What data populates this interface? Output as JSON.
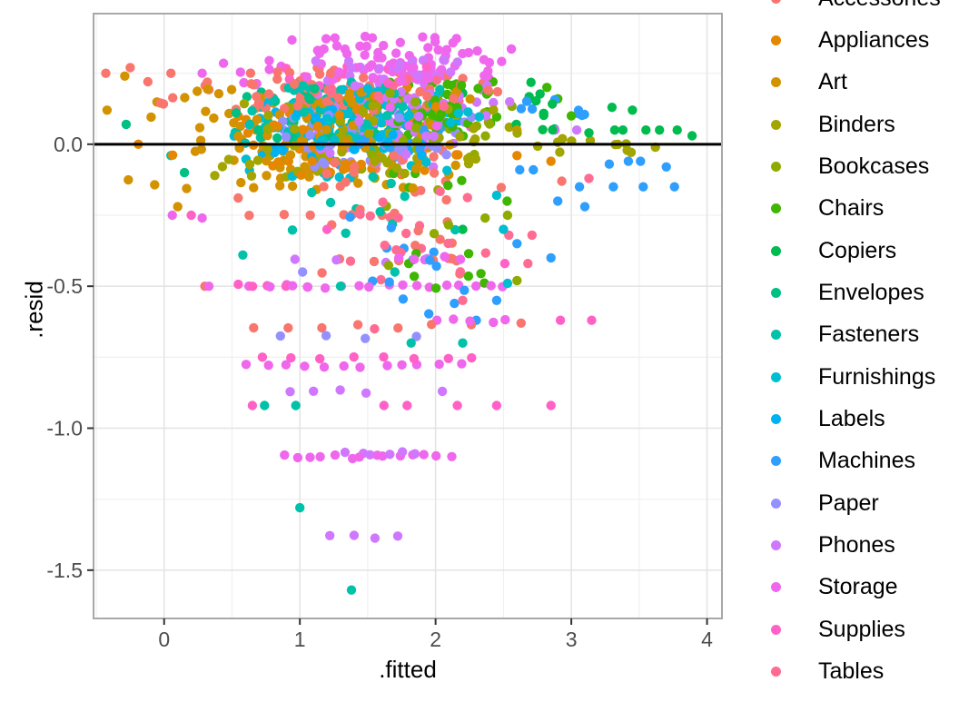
{
  "chart_data": {
    "type": "scatter",
    "title": "",
    "xlabel": ".fitted",
    "ylabel": ".resid",
    "xlim": [
      -0.52,
      4.11
    ],
    "ylim": [
      -1.67,
      0.46
    ],
    "grid": true,
    "legend_position": "right",
    "hline": {
      "y": 0,
      "color": "#000000"
    },
    "x_ticks": {
      "values": [
        0,
        1,
        2,
        3,
        4
      ],
      "labels": [
        "0",
        "1",
        "2",
        "3",
        "4"
      ]
    },
    "y_ticks": {
      "values": [
        0,
        -0.5,
        -1,
        -1.5
      ],
      "labels": [
        "0.0",
        "-0.5",
        "-1.0",
        "-1.5"
      ]
    },
    "x_minor": [
      -0.5,
      0.5,
      1.5,
      2.5,
      3.5
    ],
    "y_minor": [
      0.25,
      -0.25,
      -0.75,
      -1.25
    ],
    "series": [
      {
        "name": "Accessories",
        "color": "#F8766D",
        "clusters": [
          {
            "x": [
              -0.2,
              2.62
            ],
            "y": [
              0.12,
              0.27
            ],
            "n": 75
          },
          {
            "x": [
              0.35,
              2.6
            ],
            "y": [
              -0.2,
              -0.02
            ],
            "n": 22
          },
          {
            "x": [
              1.0,
              2.55
            ],
            "y": [
              -0.48,
              -0.2
            ],
            "n": 12
          }
        ],
        "rows": [
          {
            "y": -0.25,
            "x": [
              0.5,
              1.7
            ],
            "n": 5
          },
          {
            "y": -0.41,
            "x": [
              1.2,
              2.3
            ],
            "n": 5
          },
          {
            "y": -0.64,
            "x": [
              0.5,
              2.4
            ],
            "n": 7
          }
        ],
        "points": [
          [
            -0.43,
            0.25
          ],
          [
            -0.25,
            0.27
          ],
          [
            -0.12,
            0.22
          ],
          [
            0.05,
            0.25
          ],
          [
            2.63,
            -0.63
          ],
          [
            2.93,
            -0.13
          ],
          [
            0.3,
            -0.5
          ]
        ]
      },
      {
        "name": "Appliances",
        "color": "#E58700",
        "clusters": [
          {
            "x": [
              -0.05,
              2.4
            ],
            "y": [
              -0.12,
              0.12
            ],
            "n": 48
          },
          {
            "x": [
              0.5,
              2.2
            ],
            "y": [
              0.12,
              0.2
            ],
            "n": 7
          }
        ],
        "rows": [],
        "points": [
          [
            2.85,
            -0.06
          ],
          [
            2.6,
            -0.04
          ],
          [
            -0.19,
            0.0
          ]
        ]
      },
      {
        "name": "Art",
        "color": "#D39200",
        "clusters": [
          {
            "x": [
              -0.35,
              2.5
            ],
            "y": [
              -0.16,
              0.2
            ],
            "n": 115
          }
        ],
        "rows": [],
        "points": [
          [
            -0.29,
            0.24
          ],
          [
            -0.42,
            0.12
          ],
          [
            0.1,
            -0.22
          ],
          [
            2.6,
            0.05
          ]
        ]
      },
      {
        "name": "Binders",
        "color": "#A3A500",
        "clusters": [
          {
            "x": [
              0.0,
              2.7
            ],
            "y": [
              -0.12,
              0.16
            ],
            "n": 95
          },
          {
            "x": [
              3.2,
              3.75
            ],
            "y": [
              -0.03,
              0.03
            ],
            "n": 6
          },
          {
            "x": [
              2.6,
              3.2
            ],
            "y": [
              -0.05,
              0.05
            ],
            "n": 6
          }
        ],
        "rows": [],
        "points": []
      },
      {
        "name": "Bookcases",
        "color": "#8FAB00",
        "clusters": [
          {
            "x": [
              1.3,
              2.65
            ],
            "y": [
              -0.05,
              0.2
            ],
            "n": 26
          },
          {
            "x": [
              1.6,
              2.6
            ],
            "y": [
              -0.45,
              -0.15
            ],
            "n": 7
          }
        ],
        "rows": [],
        "points": [
          [
            2.53,
            -0.25
          ],
          [
            2.6,
            -0.48
          ]
        ]
      },
      {
        "name": "Chairs",
        "color": "#3FB600",
        "clusters": [
          {
            "x": [
              1.4,
              2.72
            ],
            "y": [
              0.02,
              0.22
            ],
            "n": 42
          },
          {
            "x": [
              1.6,
              2.65
            ],
            "y": [
              -0.52,
              -0.1
            ],
            "n": 14
          }
        ],
        "rows": [],
        "points": [
          [
            2.9,
            0.16
          ],
          [
            2.82,
            0.2
          ],
          [
            3.0,
            0.1
          ]
        ]
      },
      {
        "name": "Copiers",
        "color": "#00BB4E",
        "clusters": [
          {
            "x": [
              2.45,
              3.05
            ],
            "y": [
              0.05,
              0.22
            ],
            "n": 12
          }
        ],
        "rows": [],
        "points": [
          [
            3.13,
            0.04
          ],
          [
            3.32,
            0.05
          ],
          [
            3.38,
            0.05
          ],
          [
            3.55,
            0.05
          ],
          [
            3.65,
            0.05
          ],
          [
            3.78,
            0.05
          ],
          [
            3.89,
            0.03
          ],
          [
            3.3,
            0.13
          ],
          [
            3.45,
            0.12
          ],
          [
            2.2,
            0.18
          ],
          [
            2.2,
            -0.3
          ]
        ]
      },
      {
        "name": "Envelopes",
        "color": "#00C083",
        "clusters": [
          {
            "x": [
              0.3,
              1.9
            ],
            "y": [
              0.0,
              0.2
            ],
            "n": 26
          }
        ],
        "rows": [],
        "points": [
          [
            -0.28,
            0.07
          ],
          [
            0.15,
            -0.1
          ],
          [
            2.0,
            0.1
          ]
        ]
      },
      {
        "name": "Fasteners",
        "color": "#00C1A9",
        "clusters": [
          {
            "x": [
              0.3,
              2.3
            ],
            "y": [
              0.0,
              0.22
            ],
            "n": 60
          },
          {
            "x": [
              0.8,
              2.3
            ],
            "y": [
              -0.35,
              -0.1
            ],
            "n": 12
          }
        ],
        "rows": [],
        "points": [
          [
            1.0,
            -1.28
          ],
          [
            1.38,
            -1.57
          ],
          [
            0.74,
            -0.92
          ],
          [
            0.97,
            -0.92
          ],
          [
            1.82,
            -0.7
          ],
          [
            2.2,
            -0.7
          ],
          [
            1.3,
            -0.5
          ],
          [
            0.58,
            -0.39
          ],
          [
            1.7,
            -0.45
          ],
          [
            0.05,
            -0.04
          ]
        ]
      },
      {
        "name": "Furnishings",
        "color": "#00BDD2",
        "clusters": [
          {
            "x": [
              0.4,
              2.35
            ],
            "y": [
              0.0,
              0.2
            ],
            "n": 72
          },
          {
            "x": [
              0.5,
              2.3
            ],
            "y": [
              -0.12,
              0.0
            ],
            "n": 18
          }
        ],
        "rows": [],
        "points": [
          [
            2.5,
            -0.3
          ],
          [
            2.45,
            -0.18
          ],
          [
            2.53,
            -0.49
          ]
        ]
      },
      {
        "name": "Labels",
        "color": "#00B2F3",
        "clusters": [
          {
            "x": [
              0.3,
              2.3
            ],
            "y": [
              -0.06,
              0.15
            ],
            "n": 40
          }
        ],
        "rows": [],
        "points": []
      },
      {
        "name": "Machines",
        "color": "#2E9FFF",
        "clusters": [
          {
            "x": [
              2.55,
              3.3
            ],
            "y": [
              0.1,
              0.16
            ],
            "n": 8
          },
          {
            "x": [
              0.9,
              2.4
            ],
            "y": [
              -0.12,
              0.06
            ],
            "n": 14
          },
          {
            "x": [
              1.3,
              2.6
            ],
            "y": [
              -0.6,
              -0.2
            ],
            "n": 14
          }
        ],
        "rows": [],
        "points": [
          [
            3.28,
            -0.07
          ],
          [
            3.42,
            -0.06
          ],
          [
            3.51,
            -0.06
          ],
          [
            3.7,
            -0.08
          ],
          [
            3.06,
            -0.15
          ],
          [
            3.31,
            -0.15
          ],
          [
            3.53,
            -0.15
          ],
          [
            3.76,
            -0.15
          ],
          [
            2.62,
            -0.09
          ],
          [
            2.72,
            -0.09
          ],
          [
            2.9,
            -0.2
          ],
          [
            3.1,
            -0.22
          ],
          [
            2.6,
            -0.35
          ],
          [
            2.85,
            -0.4
          ],
          [
            2.45,
            -0.55
          ],
          [
            2.3,
            -0.62
          ]
        ]
      },
      {
        "name": "Paper",
        "color": "#9590FF",
        "clusters": [
          {
            "x": [
              0.5,
              2.4
            ],
            "y": [
              -0.08,
              0.12
            ],
            "n": 48
          }
        ],
        "rows": [
          {
            "y": -0.68,
            "x": [
              0.7,
              2.0
            ],
            "n": 4
          }
        ],
        "points": [
          [
            1.02,
            -0.45
          ]
        ]
      },
      {
        "name": "Phones",
        "color": "#CF78FF",
        "clusters": [
          {
            "x": [
              1.0,
              2.62
            ],
            "y": [
              0.1,
              0.3
            ],
            "n": 58
          },
          {
            "x": [
              0.9,
              2.5
            ],
            "y": [
              -0.08,
              0.1
            ],
            "n": 24
          }
        ],
        "rows": [
          {
            "y": -1.38,
            "x": [
              1.13,
              1.78
            ],
            "n": 4
          },
          {
            "y": -1.09,
            "x": [
              1.3,
              1.9
            ],
            "n": 6
          },
          {
            "y": -0.87,
            "x": [
              0.8,
              1.62
            ],
            "n": 4
          },
          {
            "y": -0.41,
            "x": [
              0.8,
              2.1
            ],
            "n": 4
          }
        ],
        "points": [
          [
            2.88,
            0.05
          ],
          [
            3.04,
            0.05
          ],
          [
            2.05,
            -0.87
          ]
        ]
      },
      {
        "name": "Storage",
        "color": "#EF67EC",
        "clusters": [
          {
            "x": [
              0.85,
              2.6
            ],
            "y": [
              0.22,
              0.38
            ],
            "n": 80
          },
          {
            "x": [
              0.3,
              0.95
            ],
            "y": [
              0.2,
              0.3
            ],
            "n": 8
          },
          {
            "x": [
              1.0,
              2.5
            ],
            "y": [
              0.05,
              0.2
            ],
            "n": 14
          }
        ],
        "rows": [
          {
            "y": -0.5,
            "x": [
              0.6,
              2.55
            ],
            "n": 18
          },
          {
            "y": -0.78,
            "x": [
              0.55,
              2.25
            ],
            "n": 12
          },
          {
            "y": -1.1,
            "x": [
              0.83,
              2.17
            ],
            "n": 14
          },
          {
            "y": -0.62,
            "x": [
              1.95,
              2.6
            ],
            "n": 5
          },
          {
            "y": -0.4,
            "x": [
              1.7,
              2.2
            ],
            "n": 5
          }
        ],
        "points": [
          [
            0.28,
            0.25
          ],
          [
            0.06,
            -0.25
          ],
          [
            0.28,
            -0.26
          ],
          [
            0.33,
            -0.5
          ]
        ]
      },
      {
        "name": "Supplies",
        "color": "#FF61C7",
        "clusters": [
          {
            "x": [
              0.5,
              2.5
            ],
            "y": [
              0.15,
              0.28
            ],
            "n": 12
          }
        ],
        "rows": [
          {
            "y": -0.75,
            "x": [
              0.6,
              2.4
            ],
            "n": 8
          },
          {
            "y": -0.5,
            "x": [
              0.45,
              1.1
            ],
            "n": 5
          }
        ],
        "points": [
          [
            0.65,
            -0.92
          ],
          [
            1.62,
            -0.92
          ],
          [
            1.79,
            -0.92
          ],
          [
            2.16,
            -0.92
          ],
          [
            2.45,
            -0.92
          ],
          [
            2.85,
            -0.92
          ],
          [
            2.92,
            -0.62
          ],
          [
            3.15,
            -0.62
          ],
          [
            1.2,
            -0.3
          ],
          [
            0.2,
            -0.25
          ],
          [
            2.51,
            -0.42
          ]
        ]
      },
      {
        "name": "Tables",
        "color": "#FF6C91",
        "clusters": [
          {
            "x": [
              1.2,
              2.45
            ],
            "y": [
              -0.48,
              -0.15
            ],
            "n": 16
          },
          {
            "x": [
              0.8,
              2.4
            ],
            "y": [
              0.12,
              0.25
            ],
            "n": 14
          }
        ],
        "rows": [
          {
            "y": -0.25,
            "x": [
              1.4,
              1.7
            ],
            "n": 3
          }
        ],
        "points": [
          [
            2.2,
            -0.55
          ],
          [
            1.55,
            -0.65
          ],
          [
            2.54,
            -0.32
          ],
          [
            2.71,
            -0.32
          ],
          [
            2.68,
            -0.42
          ],
          [
            3.13,
            -0.12
          ]
        ]
      }
    ]
  },
  "colors": {
    "background": "#FFFFFF",
    "grid_major": "#E3E3E3",
    "grid_minor": "#F0F0F0",
    "panel_border": "#A8A8A8",
    "axis_tick": "#333333",
    "tick_label": "#4D4D4D",
    "axis_title": "#000000",
    "legend_text": "#000000",
    "zero_line": "#000000"
  }
}
